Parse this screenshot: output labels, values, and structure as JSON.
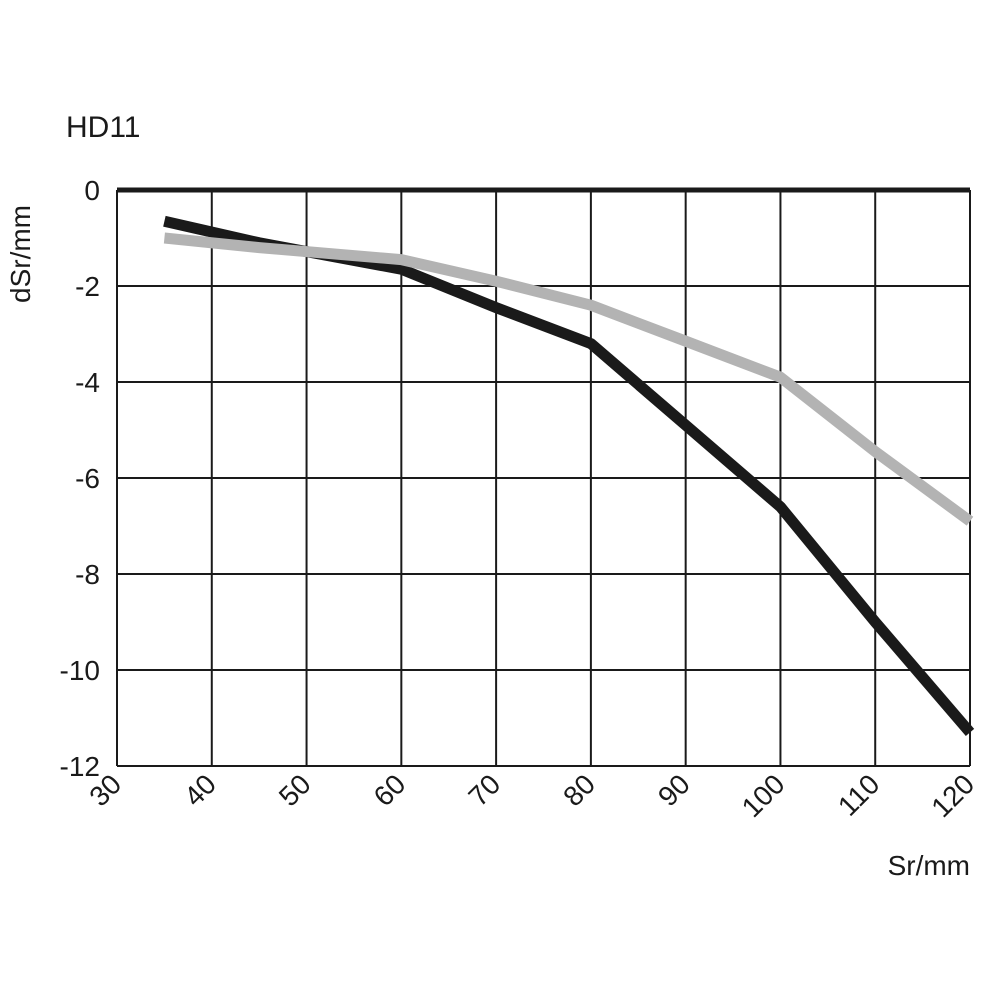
{
  "chart_data": {
    "type": "line",
    "title": "HD11",
    "xlabel": "Sr/mm",
    "ylabel": "dSr/mm",
    "xlim": [
      30,
      120
    ],
    "ylim": [
      -12,
      0
    ],
    "x_ticks": [
      "30",
      "40",
      "50",
      "60",
      "70",
      "80",
      "90",
      "100",
      "110",
      "120"
    ],
    "y_ticks": [
      "0",
      "-2",
      "-4",
      "-6",
      "-8",
      "-10",
      "-12"
    ],
    "grid": true,
    "series": [
      {
        "color": "#1a1a1a",
        "x": [
          35,
          45,
          60,
          70,
          80,
          90,
          100,
          110,
          120
        ],
        "y": [
          -0.65,
          -1.1,
          -1.65,
          -2.45,
          -3.2,
          -4.9,
          -6.6,
          -9.0,
          -11.3
        ]
      },
      {
        "color": "#b3b3b3",
        "x": [
          35,
          45,
          60,
          70,
          80,
          90,
          100,
          110,
          120
        ],
        "y": [
          -1.0,
          -1.2,
          -1.45,
          -1.9,
          -2.4,
          -3.15,
          -3.9,
          -5.45,
          -6.9
        ]
      }
    ]
  }
}
